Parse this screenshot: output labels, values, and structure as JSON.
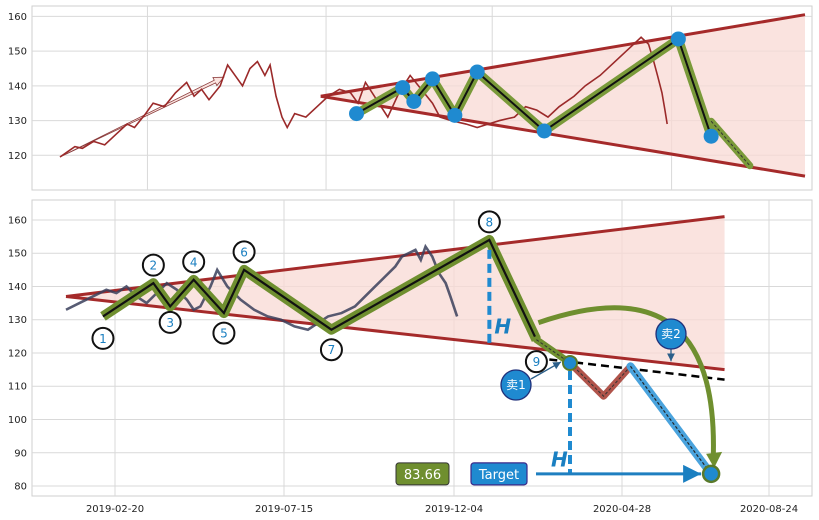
{
  "chart_data": [
    {
      "type": "line",
      "panel": "top",
      "ylim": [
        110,
        163
      ],
      "yticks": [
        120,
        130,
        140,
        150,
        160
      ],
      "grid": true,
      "series": [
        {
          "values": [
            [
              0,
              119.5
            ],
            [
              0.01,
              121
            ],
            [
              0.02,
              122.5
            ],
            [
              0.03,
              122
            ],
            [
              0.045,
              124
            ],
            [
              0.06,
              123
            ],
            [
              0.075,
              126
            ],
            [
              0.09,
              129
            ],
            [
              0.1,
              128
            ],
            [
              0.115,
              132
            ],
            [
              0.125,
              135
            ],
            [
              0.14,
              134
            ],
            [
              0.155,
              138
            ],
            [
              0.17,
              141
            ],
            [
              0.18,
              137
            ],
            [
              0.19,
              139
            ],
            [
              0.2,
              136
            ],
            [
              0.215,
              140
            ],
            [
              0.225,
              146
            ],
            [
              0.235,
              143
            ],
            [
              0.245,
              140
            ],
            [
              0.255,
              145
            ],
            [
              0.265,
              147
            ],
            [
              0.275,
              143
            ],
            [
              0.282,
              146
            ],
            [
              0.29,
              137
            ],
            [
              0.298,
              131
            ],
            [
              0.305,
              128
            ],
            [
              0.315,
              132
            ],
            [
              0.33,
              131
            ],
            [
              0.345,
              134
            ],
            [
              0.36,
              137
            ],
            [
              0.375,
              139
            ],
            [
              0.39,
              138
            ],
            [
              0.4,
              135
            ],
            [
              0.41,
              141
            ],
            [
              0.425,
              136
            ],
            [
              0.44,
              131
            ],
            [
              0.455,
              138
            ],
            [
              0.47,
              143
            ],
            [
              0.485,
              139
            ],
            [
              0.5,
              135
            ],
            [
              0.51,
              131
            ],
            [
              0.525,
              130
            ],
            [
              0.545,
              129
            ],
            [
              0.56,
              128
            ],
            [
              0.575,
              129
            ],
            [
              0.59,
              130
            ],
            [
              0.61,
              131
            ],
            [
              0.625,
              134
            ],
            [
              0.64,
              133
            ],
            [
              0.655,
              131
            ],
            [
              0.67,
              134
            ],
            [
              0.69,
              137
            ],
            [
              0.705,
              140
            ],
            [
              0.725,
              143
            ],
            [
              0.745,
              147
            ],
            [
              0.765,
              151
            ],
            [
              0.78,
              154
            ],
            [
              0.79,
              152
            ],
            [
              0.797,
              147
            ],
            [
              0.802,
              143
            ],
            [
              0.808,
              138
            ],
            [
              0.812,
              133
            ],
            [
              0.815,
              129
            ]
          ]
        }
      ],
      "channel_upper": [
        [
          0.35,
          137
        ],
        [
          1,
          160.5
        ]
      ],
      "channel_lower": [
        [
          0.35,
          137
        ],
        [
          1,
          114
        ]
      ],
      "trend_arrow": [
        [
          0,
          119.5
        ],
        [
          0.22,
          142.5
        ]
      ],
      "pattern_points": [
        [
          0.398,
          132
        ],
        [
          0.46,
          139.5
        ],
        [
          0.475,
          135.5
        ],
        [
          0.5,
          142
        ],
        [
          0.53,
          131.5
        ],
        [
          0.56,
          144
        ],
        [
          0.65,
          127
        ],
        [
          0.83,
          153.5
        ],
        [
          0.874,
          125.5
        ],
        [
          0.926,
          117
        ]
      ]
    },
    {
      "type": "line",
      "panel": "bottom",
      "ylim": [
        77,
        166
      ],
      "yticks": [
        80,
        90,
        100,
        110,
        120,
        130,
        140,
        150,
        160
      ],
      "grid": true,
      "xticklabels": [
        "2019-02-20",
        "2019-07-15",
        "2019-12-04",
        "2020-04-28",
        "2020-08-24"
      ],
      "xtick_dates": [
        "2019-02-20",
        "2019-07-15",
        "2019-12-04",
        "2020-04-28",
        "2020-08-24"
      ],
      "price": [
        [
          0,
          133
        ],
        [
          0.02,
          135
        ],
        [
          0.04,
          137
        ],
        [
          0.06,
          139
        ],
        [
          0.075,
          138
        ],
        [
          0.09,
          140
        ],
        [
          0.105,
          137
        ],
        [
          0.12,
          135
        ],
        [
          0.135,
          138
        ],
        [
          0.15,
          141
        ],
        [
          0.165,
          139
        ],
        [
          0.18,
          136
        ],
        [
          0.19,
          133
        ],
        [
          0.2,
          134
        ],
        [
          0.215,
          140
        ],
        [
          0.225,
          145
        ],
        [
          0.24,
          140
        ],
        [
          0.26,
          136
        ],
        [
          0.28,
          133
        ],
        [
          0.3,
          131
        ],
        [
          0.32,
          130
        ],
        [
          0.34,
          128
        ],
        [
          0.36,
          127
        ],
        [
          0.375,
          129
        ],
        [
          0.39,
          131
        ],
        [
          0.41,
          132
        ],
        [
          0.43,
          134
        ],
        [
          0.445,
          137
        ],
        [
          0.46,
          140
        ],
        [
          0.475,
          143
        ],
        [
          0.49,
          146
        ],
        [
          0.5,
          149
        ],
        [
          0.51,
          150
        ],
        [
          0.52,
          151
        ],
        [
          0.528,
          148
        ],
        [
          0.535,
          152
        ],
        [
          0.545,
          149
        ],
        [
          0.555,
          144
        ],
        [
          0.565,
          141
        ],
        [
          0.572,
          137
        ],
        [
          0.577,
          134
        ],
        [
          0.582,
          131
        ]
      ],
      "channel_upper": [
        [
          0,
          137
        ],
        [
          0.98,
          161
        ]
      ],
      "channel_lower": [
        [
          0,
          137
        ],
        [
          0.98,
          115
        ]
      ],
      "extension_line": [
        [
          0.7,
          118.5
        ],
        [
          0.98,
          112
        ]
      ],
      "zigzag": [
        {
          "label": "1",
          "x": 0.055,
          "y": 131
        },
        {
          "label": "2",
          "x": 0.13,
          "y": 141
        },
        {
          "label": "3",
          "x": 0.155,
          "y": 134
        },
        {
          "label": "4",
          "x": 0.19,
          "y": 142
        },
        {
          "label": "5",
          "x": 0.235,
          "y": 132
        },
        {
          "label": "6",
          "x": 0.265,
          "y": 145
        },
        {
          "label": "7",
          "x": 0.395,
          "y": 127
        },
        {
          "label": "8",
          "x": 0.63,
          "y": 154
        },
        {
          "label": "9",
          "x": 0.7,
          "y": 124
        }
      ],
      "forecast": [
        [
          0.7,
          124
        ],
        [
          0.75,
          117
        ],
        [
          0.8,
          107
        ],
        [
          0.84,
          116
        ],
        [
          0.96,
          83.66
        ]
      ],
      "pattern_height_label": "H",
      "target_label": "Target",
      "target_value": "83.66",
      "sell_signals": [
        "卖1",
        "卖2"
      ]
    }
  ]
}
